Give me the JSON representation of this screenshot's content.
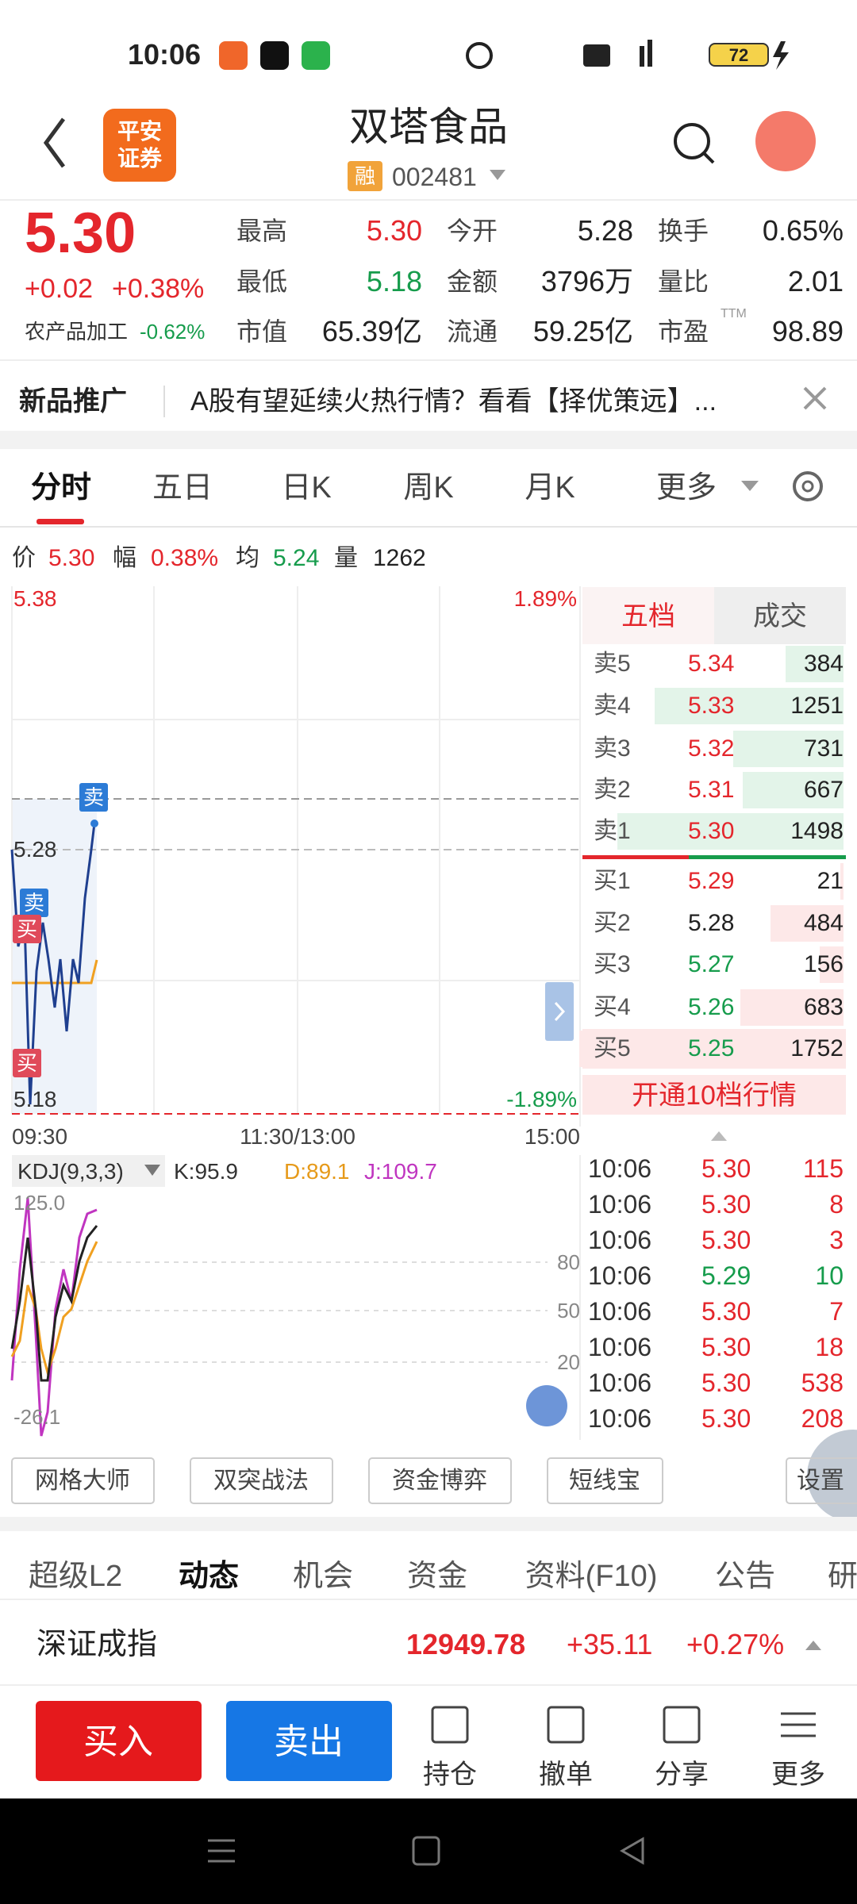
{
  "status_bar": {
    "time": "10:06",
    "battery": "72"
  },
  "header": {
    "logo": [
      "平安",
      "证券"
    ],
    "title": "双塔食品",
    "badge": "融",
    "code": "002481"
  },
  "quote": {
    "price": "5.30",
    "change": "+0.02",
    "change_pct": "+0.38%",
    "sector": "农产品加工",
    "sector_change": "-0.62%",
    "stats": [
      {
        "label": "最高",
        "value": "5.30"
      },
      {
        "label": "今开",
        "value": "5.28"
      },
      {
        "label": "换手",
        "value": "0.65%"
      },
      {
        "label": "最低",
        "value": "5.18"
      },
      {
        "label": "金额",
        "value": "3796万"
      },
      {
        "label": "量比",
        "value": "2.01"
      },
      {
        "label": "市值",
        "value": "65.39亿"
      },
      {
        "label": "流通",
        "value": "59.25亿"
      },
      {
        "label": "市盈",
        "value": "98.89"
      }
    ],
    "ttm": "TTM"
  },
  "promo": {
    "label": "新品推广",
    "text": "A股有望延续火热行情？看看【择优策远】..."
  },
  "chart_tabs": [
    "分时",
    "五日",
    "日K",
    "周K",
    "月K",
    "更多"
  ],
  "info_line": [
    {
      "label": "价",
      "value": "5.30"
    },
    {
      "label": "幅",
      "value": "0.38%"
    },
    {
      "label": "均",
      "value": "5.24"
    },
    {
      "label": "量",
      "value": "1262"
    }
  ],
  "intraday": {
    "price_top": "5.38",
    "price_mid": "5.28",
    "price_bottom": "5.18",
    "pct_top": "1.89%",
    "pct_bottom": "-1.89%",
    "times": [
      "09:30",
      "11:30/13:00",
      "15:00"
    ],
    "markers": [
      "卖",
      "卖",
      "买",
      "买"
    ]
  },
  "order_book": {
    "tabs": [
      "五档",
      "成交"
    ],
    "asks": [
      {
        "label": "卖5",
        "price": "5.34",
        "volume": 384
      },
      {
        "label": "卖4",
        "price": "5.33",
        "volume": 1251
      },
      {
        "label": "卖3",
        "price": "5.32",
        "volume": 731
      },
      {
        "label": "卖2",
        "price": "5.31",
        "volume": 667
      },
      {
        "label": "卖1",
        "price": "5.30",
        "volume": 1498
      }
    ],
    "bids": [
      {
        "label": "买1",
        "price": "5.29",
        "volume": 21
      },
      {
        "label": "买2",
        "price": "5.28",
        "volume": 484
      },
      {
        "label": "买3",
        "price": "5.27",
        "volume": 156
      },
      {
        "label": "买4",
        "price": "5.26",
        "volume": 683
      },
      {
        "label": "买5",
        "price": "5.25",
        "volume": 1752
      }
    ],
    "upgrade": "开通10档行情"
  },
  "kdj": {
    "label": "KDJ(9,3,3)",
    "k": "K:95.9",
    "d": "D:89.1",
    "j": "J:109.7",
    "axis_top": "125.0",
    "levels": [
      "80",
      "50",
      "20"
    ],
    "axis_bottom": "-26.1"
  },
  "trades": [
    {
      "time": "10:06",
      "price": "5.30",
      "volume": "115"
    },
    {
      "time": "10:06",
      "price": "5.30",
      "volume": "8"
    },
    {
      "time": "10:06",
      "price": "5.30",
      "volume": "3"
    },
    {
      "time": "10:06",
      "price": "5.29",
      "volume": "10"
    },
    {
      "time": "10:06",
      "price": "5.30",
      "volume": "7"
    },
    {
      "time": "10:06",
      "price": "5.30",
      "volume": "18"
    },
    {
      "time": "10:06",
      "price": "5.30",
      "volume": "538"
    },
    {
      "time": "10:06",
      "price": "5.30",
      "volume": "208"
    }
  ],
  "tools": [
    "网格大师",
    "双突战法",
    "资金博弈",
    "短线宝",
    "设置"
  ],
  "info_tabs": [
    "超级L2",
    "动态",
    "机会",
    "资金",
    "资料(F10)",
    "公告",
    "研"
  ],
  "index": {
    "name": "深证成指",
    "value": "12949.78",
    "change": "+35.11",
    "change_pct": "+0.27%"
  },
  "actions": {
    "buy": "买入",
    "sell": "卖出",
    "items": [
      "持仓",
      "撤单",
      "分享",
      "更多"
    ]
  }
}
